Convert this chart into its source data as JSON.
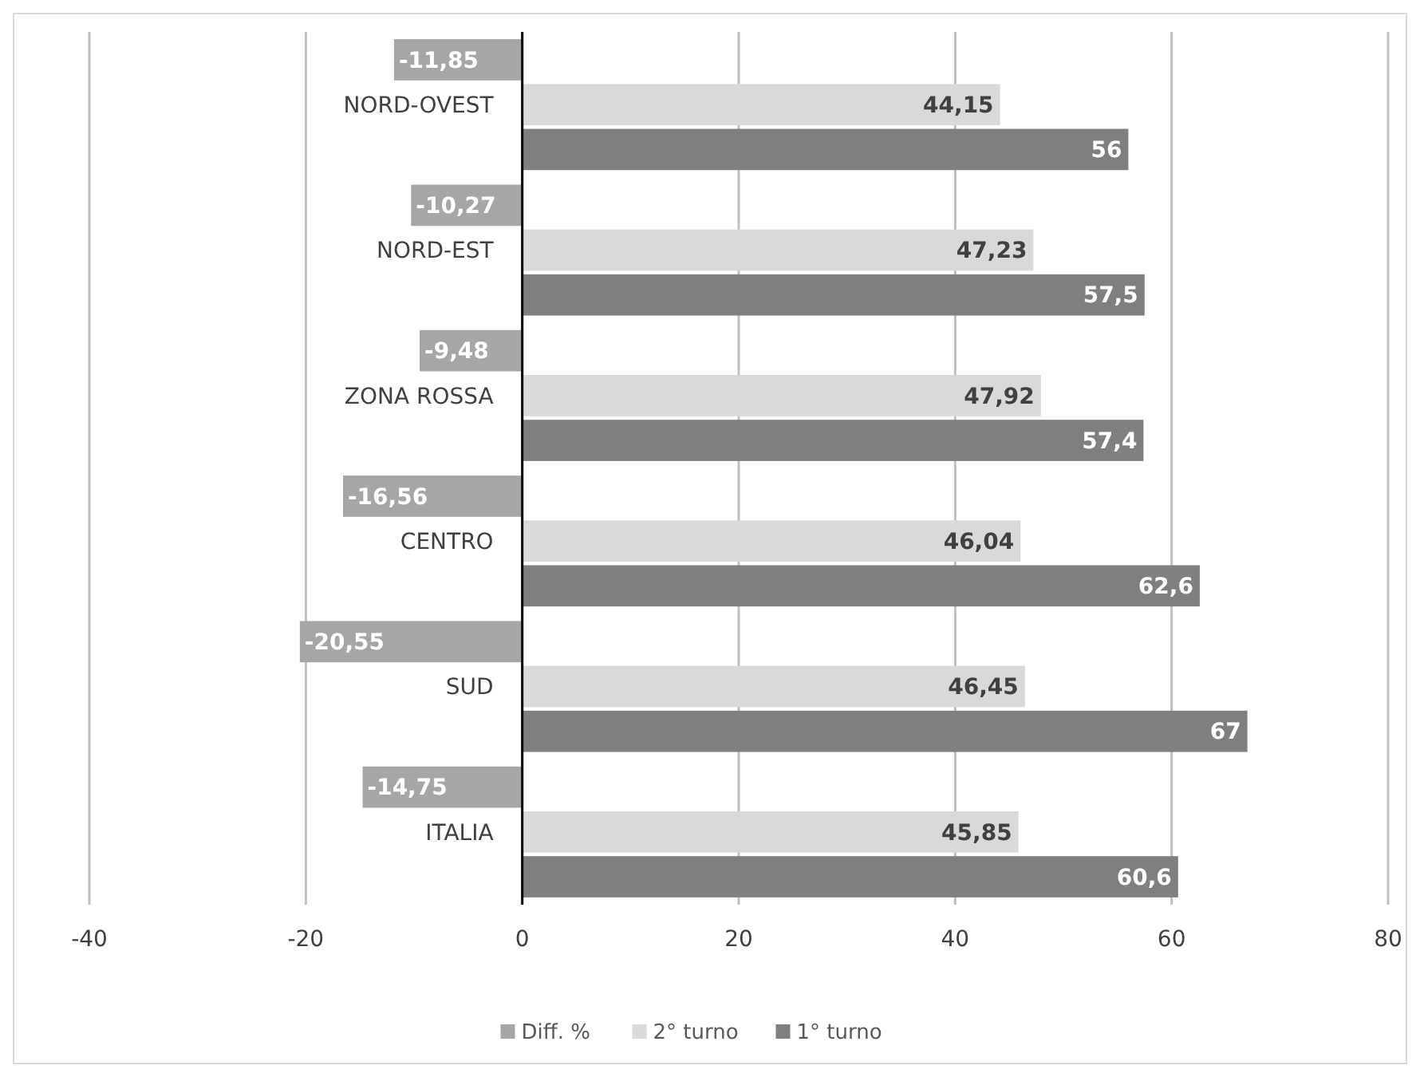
{
  "chart_data": {
    "type": "bar",
    "orientation": "horizontal",
    "categories": [
      "NORD-OVEST",
      "NORD-EST",
      "ZONA ROSSA",
      "CENTRO",
      "SUD",
      "ITALIA"
    ],
    "series": [
      {
        "name": "Diff. %",
        "color": "#a6a6a6",
        "values": [
          -11.85,
          -10.27,
          -9.48,
          -16.56,
          -20.55,
          -14.75
        ],
        "value_labels": [
          "-11,85",
          "-10,27",
          "-9,48",
          "-16,56",
          "-20,55",
          "-14,75"
        ]
      },
      {
        "name": "2° turno",
        "color": "#d9d9d9",
        "values": [
          44.15,
          47.23,
          47.92,
          46.04,
          46.45,
          45.85
        ],
        "value_labels": [
          "44,15",
          "47,23",
          "47,92",
          "46,04",
          "46,45",
          "45,85"
        ]
      },
      {
        "name": "1° turno",
        "color": "#7f7f7f",
        "values": [
          56,
          57.5,
          57.4,
          62.6,
          67,
          60.6
        ],
        "value_labels": [
          "56",
          "57,5",
          "57,4",
          "62,6",
          "67",
          "60,6"
        ]
      }
    ],
    "xlim": [
      -40,
      80
    ],
    "xticks": [
      -40,
      -20,
      0,
      20,
      40,
      60,
      80
    ],
    "grid": "x",
    "legend": "bottom"
  }
}
